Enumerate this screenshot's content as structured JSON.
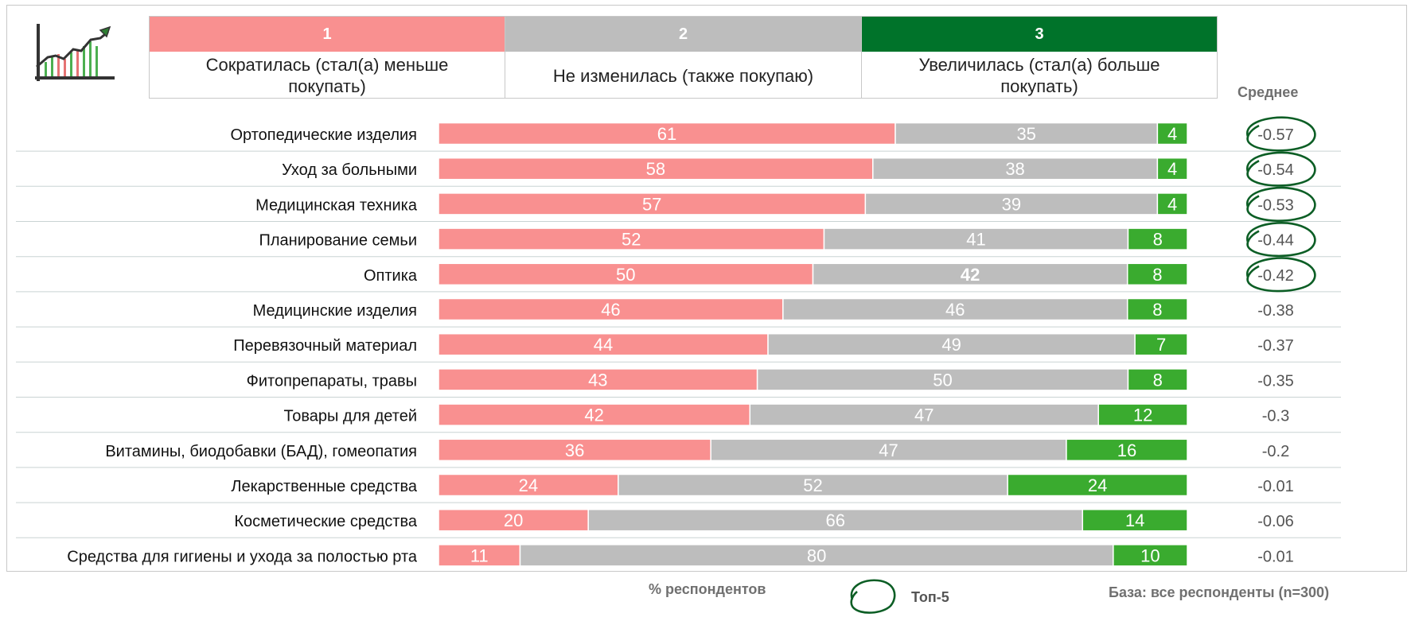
{
  "legend": [
    {
      "number": "1",
      "label": "Сократилась (стал(а) меньше покупать)",
      "color": "#f99090"
    },
    {
      "number": "2",
      "label": "Не изменилась (также покупаю)",
      "color": "#bdbdbd"
    },
    {
      "number": "3",
      "label": "Увеличилась (стал(а) больше покупать)",
      "color": "#00732a"
    }
  ],
  "avg_header": "Среднее",
  "footer": {
    "unit": "% респондентов",
    "top5_label": "Топ-5",
    "base": "База: все респонденты (n=300)"
  },
  "colors": {
    "decreased": "#f99090",
    "unchanged": "#bdbdbd",
    "increased": "#3aab2f",
    "top5_circle": "#0c5e25"
  },
  "icons": [
    "growth-chart-icon",
    "top5-circle-icon"
  ],
  "chart_data": {
    "type": "bar",
    "orientation": "horizontal",
    "stacked": true,
    "categories": [
      "Ортопедические изделия",
      "Уход за больными",
      "Медицинская техника",
      "Планирование семьи",
      "Оптика",
      "Медицинские изделия",
      "Перевязочный материал",
      "Фитопрепараты, травы",
      "Товары для детей",
      "Витамины, биодобавки (БАД), гомеопатия",
      "Лекарственные средства",
      "Косметические средства",
      "Средства для гигиены и ухода за полостью рта"
    ],
    "series": [
      {
        "name": "Сократилась (стал(а) меньше покупать)",
        "values": [
          61,
          58,
          57,
          52,
          50,
          46,
          44,
          43,
          42,
          36,
          24,
          20,
          11
        ]
      },
      {
        "name": "Не изменилась (также покупаю)",
        "values": [
          35,
          38,
          39,
          41,
          42,
          46,
          49,
          50,
          47,
          47,
          52,
          66,
          80
        ]
      },
      {
        "name": "Увеличилась (стал(а) больше покупать)",
        "values": [
          4,
          4,
          4,
          8,
          8,
          8,
          7,
          8,
          12,
          16,
          24,
          14,
          10
        ]
      }
    ],
    "averages": [
      "-0.57",
      "-0.54",
      "-0.53",
      "-0.44",
      "-0.42",
      "-0.38",
      "-0.37",
      "-0.35",
      "-0.3",
      "-0.2",
      "-0.01",
      "-0.06",
      "-0.01"
    ],
    "top5_indices": [
      0,
      1,
      2,
      3,
      4
    ],
    "bold_value_labels": [
      {
        "row": 4,
        "series": 1
      }
    ],
    "xlim": [
      0,
      100
    ],
    "grid": false
  }
}
